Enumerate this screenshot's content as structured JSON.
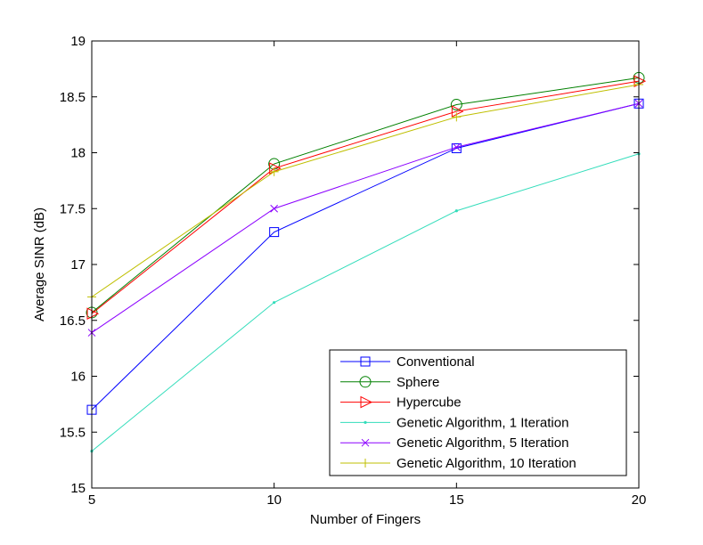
{
  "chart_data": {
    "type": "line",
    "title": "",
    "xlabel": "Number of Fingers",
    "ylabel": "Average SINR (dB)",
    "x": [
      5,
      10,
      15,
      20
    ],
    "xlim": [
      5,
      20
    ],
    "ylim": [
      15,
      19
    ],
    "xticks": [
      "5",
      "10",
      "15",
      "20"
    ],
    "yticks": [
      "15",
      "15.5",
      "16",
      "16.5",
      "17",
      "17.5",
      "18",
      "18.5",
      "19"
    ],
    "grid": false,
    "legend_position": "bottom-right",
    "series": [
      {
        "name": "Conventional",
        "values": [
          15.7,
          17.29,
          18.04,
          18.44
        ],
        "color": "#0000ff",
        "marker": "square"
      },
      {
        "name": "Sphere",
        "values": [
          16.57,
          17.9,
          18.43,
          18.67
        ],
        "color": "#008000",
        "marker": "circle"
      },
      {
        "name": "Hypercube",
        "values": [
          16.56,
          17.86,
          18.37,
          18.64
        ],
        "color": "#ff0000",
        "marker": "triangle-right"
      },
      {
        "name": "Genetic Algorithm, 1 Iteration",
        "values": [
          15.33,
          16.66,
          17.48,
          17.99
        ],
        "color": "#33ddbb",
        "marker": "point"
      },
      {
        "name": "Genetic Algorithm, 5 Iteration",
        "values": [
          16.39,
          17.5,
          18.05,
          18.44
        ],
        "color": "#8b00ff",
        "marker": "x"
      },
      {
        "name": "Genetic Algorithm, 10 Iteration",
        "values": [
          16.71,
          17.83,
          18.32,
          18.61
        ],
        "color": "#bfbf00",
        "marker": "plus"
      }
    ]
  }
}
